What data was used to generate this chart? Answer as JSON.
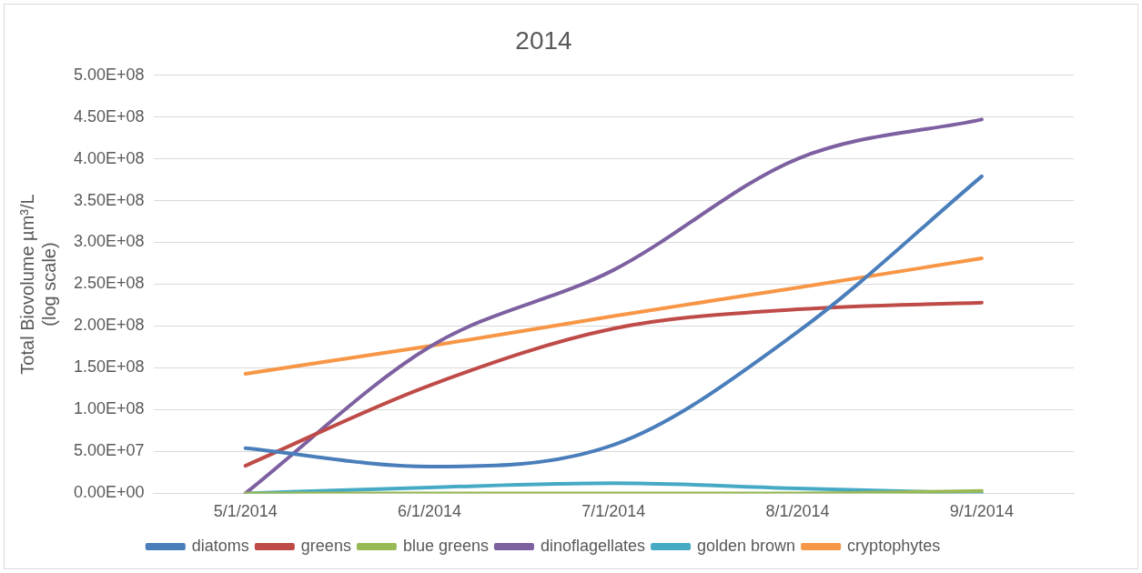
{
  "chart_data": {
    "type": "line",
    "title": "2014",
    "ylabel": "Total Biovolume µm³/L\n(log scale)",
    "categories": [
      "5/1/2014",
      "6/1/2014",
      "7/1/2014",
      "8/1/2014",
      "9/1/2014"
    ],
    "series": [
      {
        "name": "diatoms",
        "color": "#4a7ebb",
        "values": [
          54000000,
          32000000,
          58000000,
          193000000,
          379000000
        ]
      },
      {
        "name": "greens",
        "color": "#be4b48",
        "values": [
          33000000,
          129000000,
          197000000,
          220000000,
          228000000
        ]
      },
      {
        "name": "blue greens",
        "color": "#98b954",
        "values": [
          0,
          0,
          0,
          0,
          3000000
        ]
      },
      {
        "name": "dinoflagellates",
        "color": "#7d60a0",
        "values": [
          0,
          175000000,
          267000000,
          400000000,
          447000000
        ]
      },
      {
        "name": "golden brown",
        "color": "#46aac5",
        "values": [
          0,
          7000000,
          12000000,
          6000000,
          0
        ]
      },
      {
        "name": "cryptophytes",
        "color": "#f79646",
        "values": [
          143000000,
          176000000,
          212000000,
          246000000,
          281000000
        ]
      }
    ],
    "ylim": [
      0,
      500000000
    ],
    "yticks": [
      {
        "value": 0,
        "label": "0.00E+00"
      },
      {
        "value": 50000000,
        "label": "5.00E+07"
      },
      {
        "value": 100000000,
        "label": "1.00E+08"
      },
      {
        "value": 150000000,
        "label": "1.50E+08"
      },
      {
        "value": 200000000,
        "label": "2.00E+08"
      },
      {
        "value": 250000000,
        "label": "2.50E+08"
      },
      {
        "value": 300000000,
        "label": "3.00E+08"
      },
      {
        "value": 350000000,
        "label": "3.50E+08"
      },
      {
        "value": 400000000,
        "label": "4.00E+08"
      },
      {
        "value": 450000000,
        "label": "4.50E+08"
      },
      {
        "value": 500000000,
        "label": "5.00E+08"
      }
    ],
    "grid": "y",
    "legend": "bottom",
    "marker": "none",
    "line_style": "solid"
  }
}
